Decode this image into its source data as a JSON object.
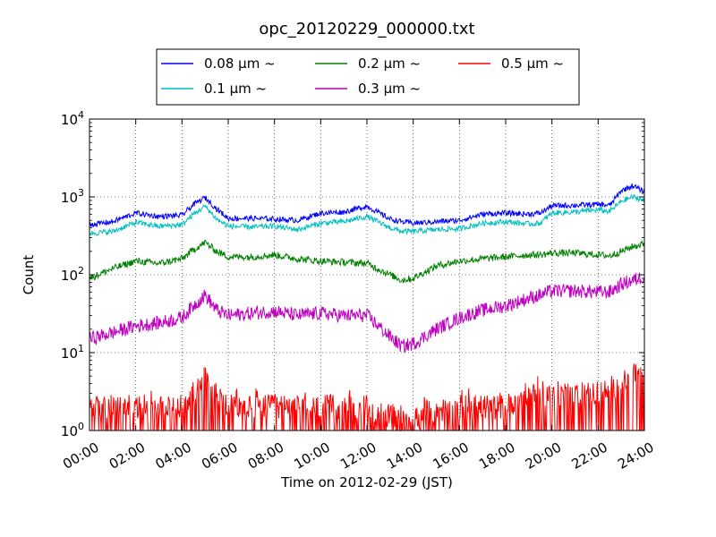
{
  "chart_data": {
    "type": "line",
    "title": "opc_20120229_000000.txt",
    "xlabel": "Time on 2012-02-29 (JST)",
    "ylabel": "Count",
    "yscale": "log",
    "ylim": [
      1,
      10000
    ],
    "xlim": [
      "00:00",
      "24:00"
    ],
    "x_ticks": [
      "00:00",
      "02:00",
      "04:00",
      "06:00",
      "08:00",
      "10:00",
      "12:00",
      "14:00",
      "16:00",
      "18:00",
      "20:00",
      "22:00",
      "24:00"
    ],
    "y_ticks": [
      {
        "base": "10",
        "exp": "0"
      },
      {
        "base": "10",
        "exp": "1"
      },
      {
        "base": "10",
        "exp": "2"
      },
      {
        "base": "10",
        "exp": "3"
      },
      {
        "base": "10",
        "exp": "4"
      }
    ],
    "grid": true,
    "legend_position": "top-center",
    "series": [
      {
        "name": "0.08 μm ~",
        "color": "#0000ff",
        "x": [
          "00:00",
          "01:00",
          "02:00",
          "03:00",
          "04:00",
          "04:30",
          "05:00",
          "05:30",
          "06:00",
          "07:00",
          "08:00",
          "09:00",
          "10:00",
          "11:00",
          "12:00",
          "13:00",
          "13:30",
          "14:00",
          "15:00",
          "16:00",
          "17:00",
          "18:00",
          "19:00",
          "19:30",
          "20:00",
          "21:00",
          "22:00",
          "22:30",
          "23:00",
          "23:30",
          "24:00"
        ],
        "y": [
          440,
          480,
          620,
          560,
          580,
          800,
          980,
          700,
          530,
          530,
          520,
          500,
          620,
          640,
          760,
          520,
          480,
          460,
          480,
          500,
          600,
          620,
          600,
          620,
          770,
          780,
          800,
          780,
          1200,
          1400,
          1150
        ]
      },
      {
        "name": "0.1 μm ~",
        "color": "#00bfbf",
        "x": [
          "00:00",
          "01:00",
          "02:00",
          "03:00",
          "04:00",
          "04:30",
          "05:00",
          "05:30",
          "06:00",
          "07:00",
          "08:00",
          "09:00",
          "10:00",
          "11:00",
          "12:00",
          "13:00",
          "13:30",
          "14:00",
          "15:00",
          "16:00",
          "17:00",
          "18:00",
          "19:00",
          "19:30",
          "20:00",
          "21:00",
          "22:00",
          "22:30",
          "23:00",
          "23:30",
          "24:00"
        ],
        "y": [
          340,
          360,
          470,
          420,
          440,
          600,
          760,
          520,
          420,
          410,
          420,
          380,
          460,
          480,
          560,
          400,
          360,
          360,
          380,
          390,
          460,
          480,
          450,
          460,
          620,
          640,
          680,
          650,
          880,
          1000,
          900
        ]
      },
      {
        "name": "0.2 μm ~",
        "color": "#008000",
        "x": [
          "00:00",
          "01:00",
          "02:00",
          "03:00",
          "04:00",
          "04:30",
          "05:00",
          "05:30",
          "06:00",
          "07:00",
          "08:00",
          "09:00",
          "10:00",
          "11:00",
          "12:00",
          "13:00",
          "13:30",
          "14:00",
          "15:00",
          "16:00",
          "17:00",
          "18:00",
          "19:00",
          "19:30",
          "20:00",
          "21:00",
          "22:00",
          "22:30",
          "23:00",
          "23:30",
          "24:00"
        ],
        "y": [
          90,
          120,
          150,
          140,
          160,
          210,
          260,
          200,
          170,
          170,
          180,
          160,
          150,
          145,
          140,
          100,
          85,
          90,
          130,
          150,
          160,
          170,
          180,
          180,
          190,
          190,
          180,
          175,
          200,
          230,
          250
        ]
      },
      {
        "name": "0.3 μm ~",
        "color": "#bf00bf",
        "x": [
          "00:00",
          "01:00",
          "02:00",
          "03:00",
          "04:00",
          "04:30",
          "05:00",
          "05:30",
          "06:00",
          "07:00",
          "08:00",
          "09:00",
          "10:00",
          "11:00",
          "12:00",
          "13:00",
          "13:30",
          "14:00",
          "15:00",
          "16:00",
          "17:00",
          "18:00",
          "19:00",
          "19:30",
          "20:00",
          "21:00",
          "22:00",
          "22:30",
          "23:00",
          "23:30",
          "24:00"
        ],
        "y": [
          15,
          18,
          22,
          24,
          28,
          40,
          55,
          35,
          30,
          32,
          34,
          30,
          32,
          30,
          30,
          16,
          12,
          13,
          20,
          28,
          35,
          40,
          50,
          55,
          62,
          62,
          60,
          60,
          75,
          85,
          95
        ]
      },
      {
        "name": "0.5 μm ~",
        "color": "#ff0000",
        "x": [
          "00:00",
          "01:00",
          "02:00",
          "03:00",
          "04:00",
          "04:30",
          "05:00",
          "05:30",
          "06:00",
          "07:00",
          "08:00",
          "09:00",
          "10:00",
          "11:00",
          "12:00",
          "13:00",
          "13:30",
          "14:00",
          "15:00",
          "16:00",
          "17:00",
          "18:00",
          "19:00",
          "19:30",
          "20:00",
          "21:00",
          "22:00",
          "22:30",
          "23:00",
          "23:30",
          "24:00"
        ],
        "y": [
          2,
          2,
          2,
          2,
          2,
          3,
          5,
          3,
          2,
          2,
          2,
          2,
          2,
          2,
          2,
          1.5,
          1.3,
          1.4,
          1.8,
          2,
          2,
          2,
          3,
          3,
          3,
          3,
          3,
          3,
          4,
          5,
          5
        ]
      }
    ]
  }
}
